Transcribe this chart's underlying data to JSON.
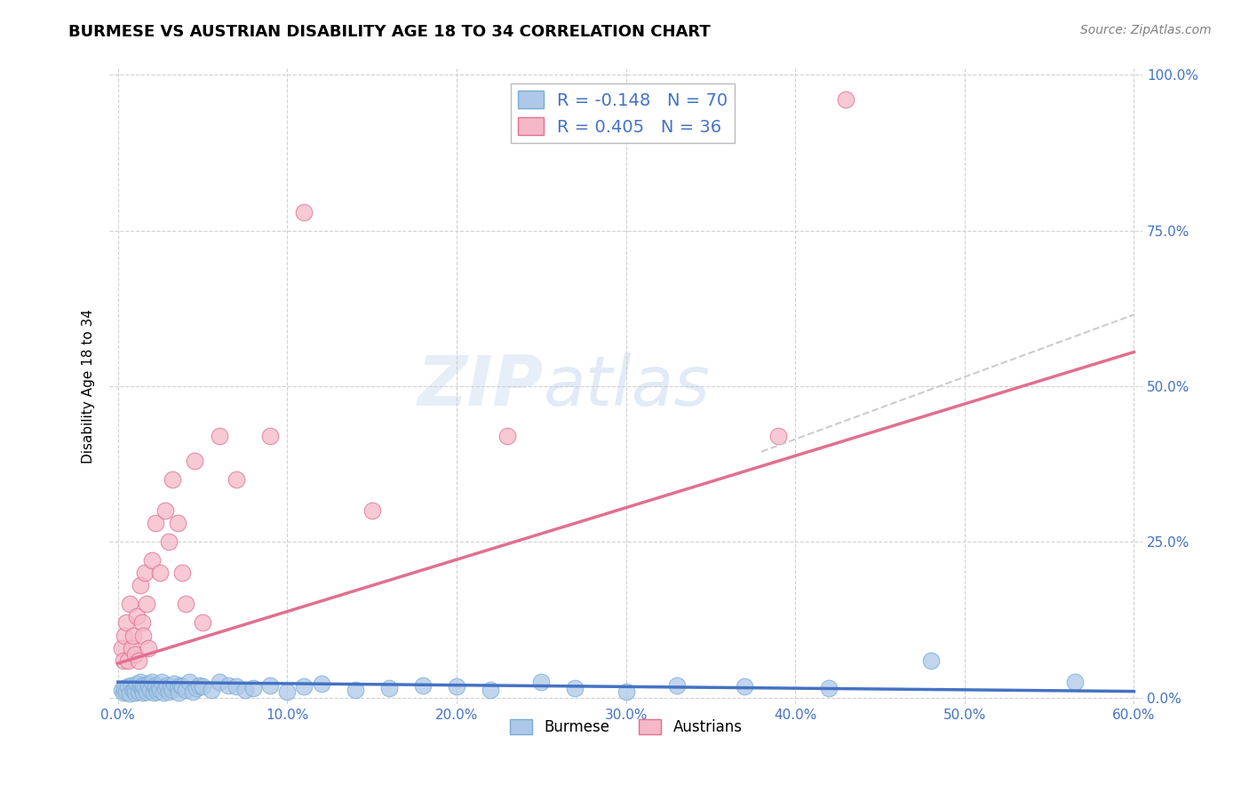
{
  "title": "BURMESE VS AUSTRIAN DISABILITY AGE 18 TO 34 CORRELATION CHART",
  "source": "Source: ZipAtlas.com",
  "ylabel": "Disability Age 18 to 34",
  "xlabel": "",
  "xlim": [
    -0.005,
    0.605
  ],
  "ylim": [
    -0.01,
    1.01
  ],
  "xtick_vals": [
    0.0,
    0.1,
    0.2,
    0.3,
    0.4,
    0.5,
    0.6
  ],
  "ytick_vals": [
    0.0,
    0.25,
    0.5,
    0.75,
    1.0
  ],
  "burmese_color": "#adc8e8",
  "austrians_color": "#f5b8c8",
  "burmese_edge_color": "#7aadd4",
  "austrians_edge_color": "#e07090",
  "burmese_line_color": "#4472c4",
  "austrians_line_color": "#e07090",
  "axis_color": "#4472c4",
  "watermark": "ZIPatlas",
  "R_burmese": -0.148,
  "N_burmese": 70,
  "R_austrians": 0.405,
  "N_austrians": 36,
  "title_fontsize": 13,
  "burmese_trend_x0": 0.0,
  "burmese_trend_y0": 0.025,
  "burmese_trend_x1": 0.6,
  "burmese_trend_y1": 0.01,
  "austrians_trend_x0": 0.0,
  "austrians_trend_y0": 0.055,
  "austrians_trend_x1": 0.6,
  "austrians_trend_y1": 0.555,
  "dashed_trend_x0": 0.38,
  "dashed_trend_y0": 0.395,
  "dashed_trend_x1": 0.6,
  "dashed_trend_y1": 0.615,
  "burmese_x": [
    0.002,
    0.003,
    0.004,
    0.005,
    0.006,
    0.007,
    0.008,
    0.009,
    0.01,
    0.01,
    0.011,
    0.012,
    0.013,
    0.013,
    0.014,
    0.015,
    0.015,
    0.016,
    0.017,
    0.018,
    0.018,
    0.019,
    0.02,
    0.021,
    0.022,
    0.022,
    0.023,
    0.024,
    0.025,
    0.026,
    0.027,
    0.028,
    0.029,
    0.03,
    0.031,
    0.032,
    0.033,
    0.035,
    0.036,
    0.037,
    0.038,
    0.04,
    0.042,
    0.044,
    0.046,
    0.048,
    0.05,
    0.055,
    0.06,
    0.065,
    0.07,
    0.075,
    0.08,
    0.09,
    0.1,
    0.11,
    0.12,
    0.14,
    0.16,
    0.18,
    0.2,
    0.22,
    0.25,
    0.27,
    0.3,
    0.33,
    0.37,
    0.42,
    0.48,
    0.565
  ],
  "burmese_y": [
    0.012,
    0.008,
    0.015,
    0.01,
    0.018,
    0.006,
    0.02,
    0.012,
    0.015,
    0.008,
    0.022,
    0.01,
    0.018,
    0.025,
    0.012,
    0.008,
    0.02,
    0.015,
    0.01,
    0.022,
    0.018,
    0.012,
    0.025,
    0.008,
    0.015,
    0.02,
    0.01,
    0.018,
    0.012,
    0.025,
    0.008,
    0.015,
    0.02,
    0.01,
    0.018,
    0.012,
    0.022,
    0.015,
    0.008,
    0.02,
    0.018,
    0.012,
    0.025,
    0.01,
    0.015,
    0.02,
    0.018,
    0.012,
    0.025,
    0.02,
    0.018,
    0.012,
    0.015,
    0.02,
    0.01,
    0.018,
    0.022,
    0.012,
    0.015,
    0.02,
    0.018,
    0.012,
    0.025,
    0.015,
    0.01,
    0.02,
    0.018,
    0.015,
    0.06,
    0.025
  ],
  "austrians_x": [
    0.002,
    0.003,
    0.004,
    0.005,
    0.006,
    0.007,
    0.008,
    0.009,
    0.01,
    0.011,
    0.012,
    0.013,
    0.014,
    0.015,
    0.016,
    0.017,
    0.018,
    0.02,
    0.022,
    0.025,
    0.028,
    0.03,
    0.032,
    0.035,
    0.038,
    0.04,
    0.045,
    0.05,
    0.06,
    0.07,
    0.09,
    0.11,
    0.15,
    0.23,
    0.39,
    0.43
  ],
  "austrians_y": [
    0.08,
    0.06,
    0.1,
    0.12,
    0.06,
    0.15,
    0.08,
    0.1,
    0.07,
    0.13,
    0.06,
    0.18,
    0.12,
    0.1,
    0.2,
    0.15,
    0.08,
    0.22,
    0.28,
    0.2,
    0.3,
    0.25,
    0.35,
    0.28,
    0.2,
    0.15,
    0.38,
    0.12,
    0.42,
    0.35,
    0.42,
    0.78,
    0.3,
    0.42,
    0.42,
    0.96
  ]
}
